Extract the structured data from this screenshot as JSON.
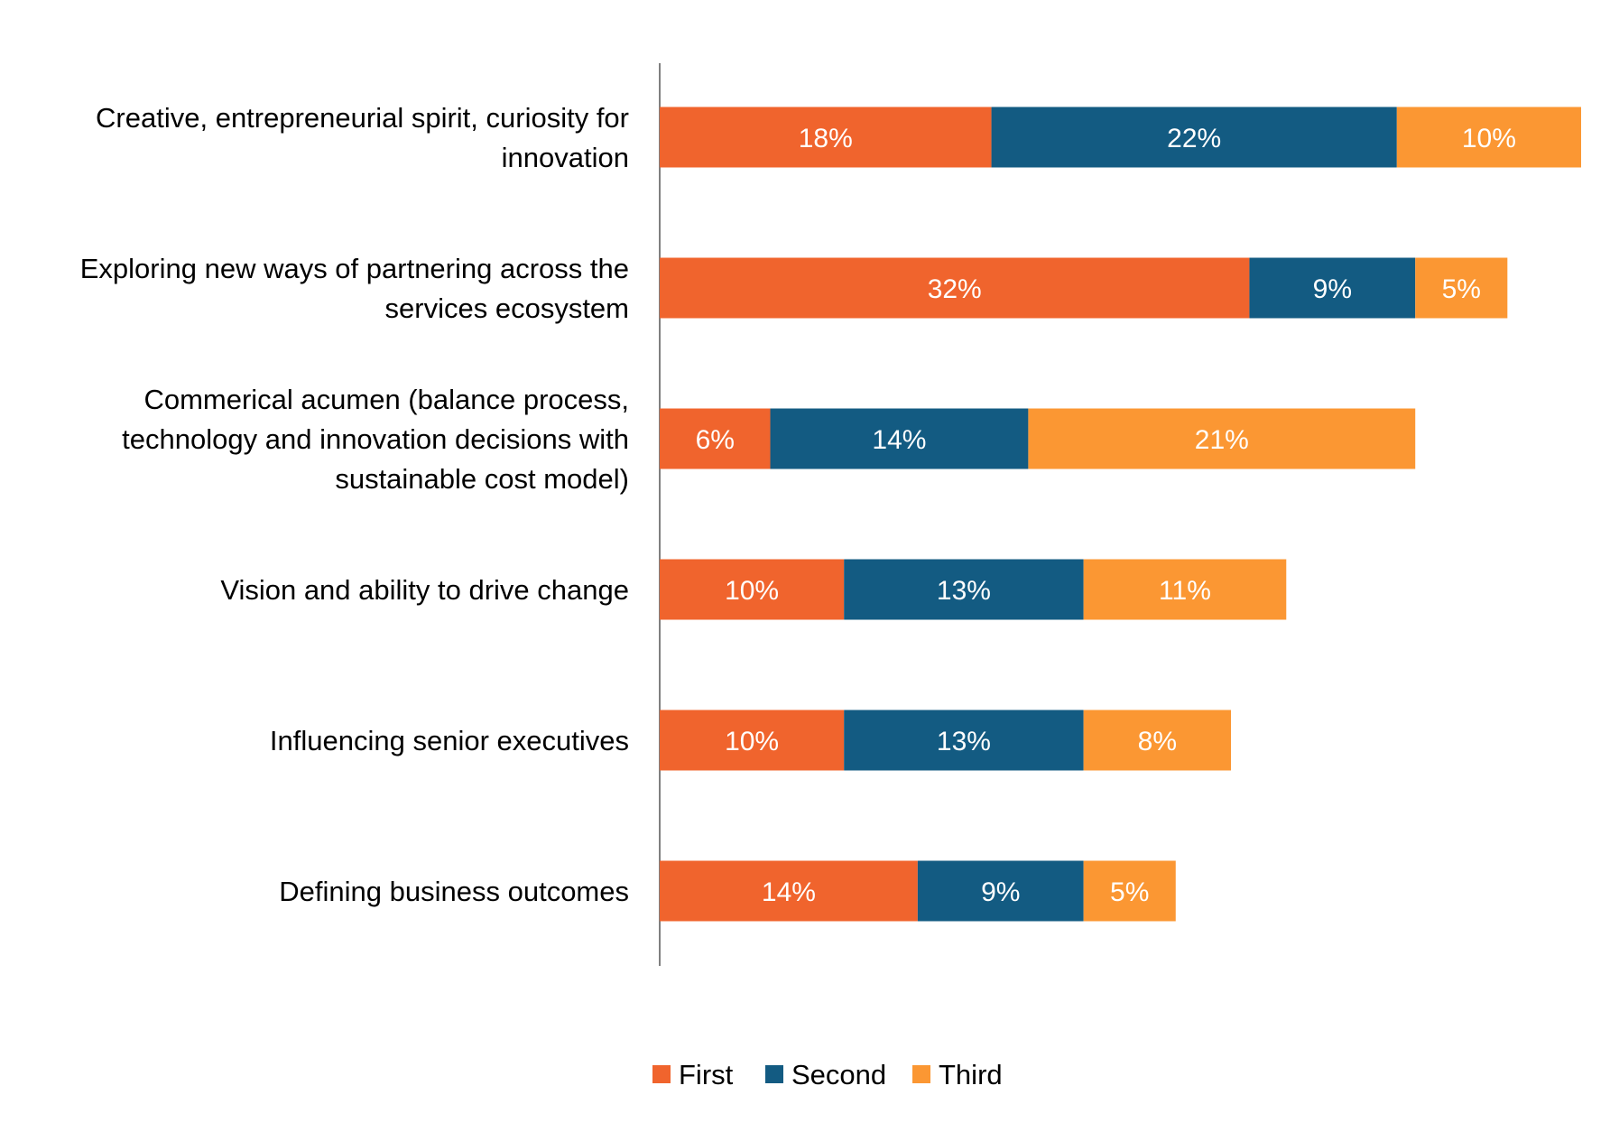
{
  "chart_data": {
    "type": "bar",
    "orientation": "horizontal",
    "stacked": true,
    "categories": [
      "Creative, entrepreneurial spirit, curiosity for innovation",
      "Exploring new ways of partnering across the services ecosystem",
      "Commerical acumen (balance process, technology and innovation decisions with sustainable cost model)",
      "Vision and ability to drive change",
      "Influencing senior executives",
      "Defining business outcomes"
    ],
    "category_lines": [
      [
        "Creative, entrepreneurial spirit, curiosity for",
        "innovation"
      ],
      [
        "Exploring new ways of partnering across the",
        "services ecosystem"
      ],
      [
        "Commerical acumen (balance process,",
        "technology and innovation decisions with",
        "sustainable cost model)"
      ],
      [
        "Vision and ability to drive change"
      ],
      [
        "Influencing senior executives"
      ],
      [
        "Defining business outcomes"
      ]
    ],
    "series": [
      {
        "name": "First",
        "color": "#F0642D",
        "values": [
          18,
          32,
          6,
          10,
          10,
          14
        ]
      },
      {
        "name": "Second",
        "color": "#135B82",
        "values": [
          22,
          9,
          14,
          13,
          13,
          9
        ]
      },
      {
        "name": "Third",
        "color": "#FB9733",
        "values": [
          10,
          5,
          21,
          11,
          8,
          5
        ]
      }
    ],
    "value_suffix": "%",
    "xlim": [
      0,
      50
    ],
    "grid": false,
    "legend": "bottom",
    "title": "",
    "xlabel": "",
    "ylabel": ""
  }
}
